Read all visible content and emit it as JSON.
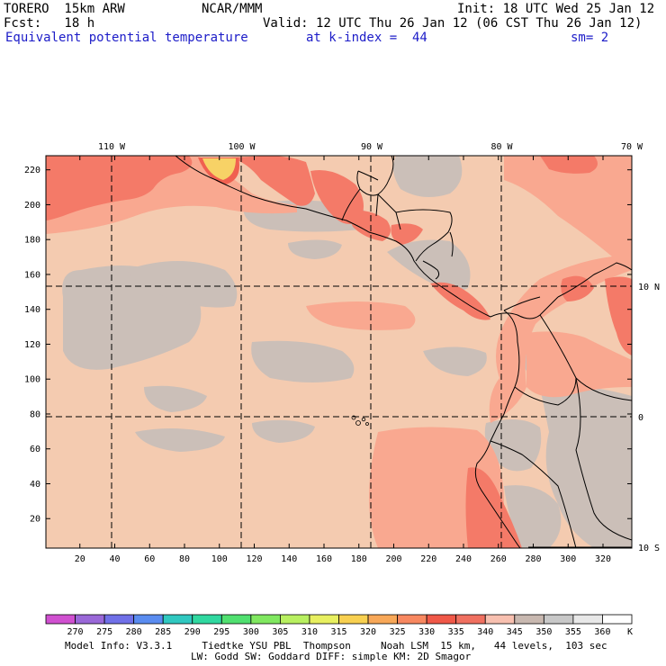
{
  "header": {
    "model": "TORERO  15km ARW",
    "center": "NCAR/MMM",
    "init": "Init: 18 UTC Wed 25 Jan 12",
    "fcst": "Fcst:   18 h",
    "valid": "Valid: 12 UTC Thu 26 Jan 12 (06 CST Thu 26 Jan 12)",
    "field": "Equivalent potential temperature",
    "level": "at k-index =  44",
    "smooth": "sm= 2"
  },
  "map": {
    "lon_labels": [
      "110 W",
      "100 W",
      "90 W",
      "80 W",
      "70 W"
    ],
    "lat_labels": [
      "10 N",
      "0",
      "10 S"
    ],
    "y_ticks": [
      "20",
      "40",
      "60",
      "80",
      "100",
      "120",
      "140",
      "160",
      "180",
      "200",
      "220"
    ],
    "x_ticks": [
      "20",
      "40",
      "60",
      "80",
      "100",
      "120",
      "140",
      "160",
      "180",
      "200",
      "220",
      "240",
      "260",
      "280",
      "300",
      "320"
    ],
    "colors": {
      "base": "#f4cbb0",
      "gray": "#cbbfb8",
      "light_red": "#f9a890",
      "red": "#f47a68",
      "deep_red": "#ef4a3e",
      "yellow": "#f7d266",
      "light_gray": "#cccccc"
    }
  },
  "colorbar": {
    "labels": [
      "270",
      "275",
      "280",
      "285",
      "290",
      "295",
      "300",
      "305",
      "310",
      "315",
      "320",
      "325",
      "330",
      "335",
      "340",
      "345",
      "350",
      "355",
      "360"
    ],
    "unit": "K",
    "colors": [
      "#d050d0",
      "#9a68d8",
      "#7070e8",
      "#5a8cf0",
      "#30c8c0",
      "#30d8a0",
      "#50e070",
      "#80e860",
      "#b8f060",
      "#e8f060",
      "#f8d050",
      "#f8a858",
      "#f88860",
      "#f05848",
      "#f07060",
      "#f8c0b0",
      "#c8b8b0",
      "#c8c8c8",
      "#e8e8e8",
      "#ffffff"
    ]
  },
  "footer": {
    "line1": "Model Info: V3.3.1     Tiedtke YSU PBL  Thompson     Noah LSM  15 km,   44 levels,  103 sec",
    "line2": "LW: Godd SW: Goddard DIFF: simple KM: 2D Smagor"
  }
}
